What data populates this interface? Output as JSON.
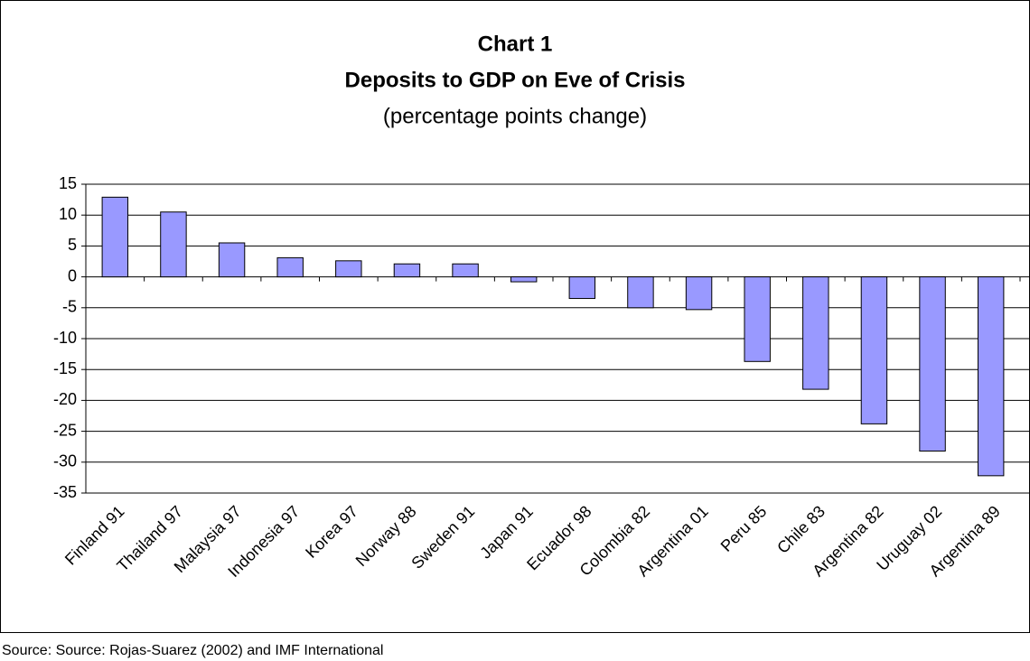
{
  "chart_data": {
    "type": "bar",
    "title": "Chart 1",
    "subtitle": "Deposits to GDP on Eve of Crisis",
    "subtitle2": "(percentage points change)",
    "source": "Source: Source: Rojas-Suarez (2002) and IMF International",
    "categories": [
      "Finland 91",
      "Thailand 97",
      "Malaysia 97",
      "Indonesia 97",
      "Korea 97",
      "Norway 88",
      "Sweden 91",
      "Japan 91",
      "Ecuador 98",
      "Colombia 82",
      "Argentina 01",
      "Peru 85",
      "Chile 83",
      "Argentina 82",
      "Uruguay 02",
      "Argentina 89"
    ],
    "values": [
      12.9,
      10.5,
      5.5,
      3.1,
      2.6,
      2.1,
      2.1,
      -0.8,
      -3.5,
      -5.0,
      -5.3,
      -13.7,
      -18.2,
      -23.8,
      -28.2,
      -32.2
    ],
    "color": "#9999ff",
    "ylim": [
      -35,
      15
    ],
    "yticks": [
      15,
      10,
      5,
      0,
      -5,
      -10,
      -15,
      -20,
      -25,
      -30,
      -35
    ],
    "grid": true
  }
}
